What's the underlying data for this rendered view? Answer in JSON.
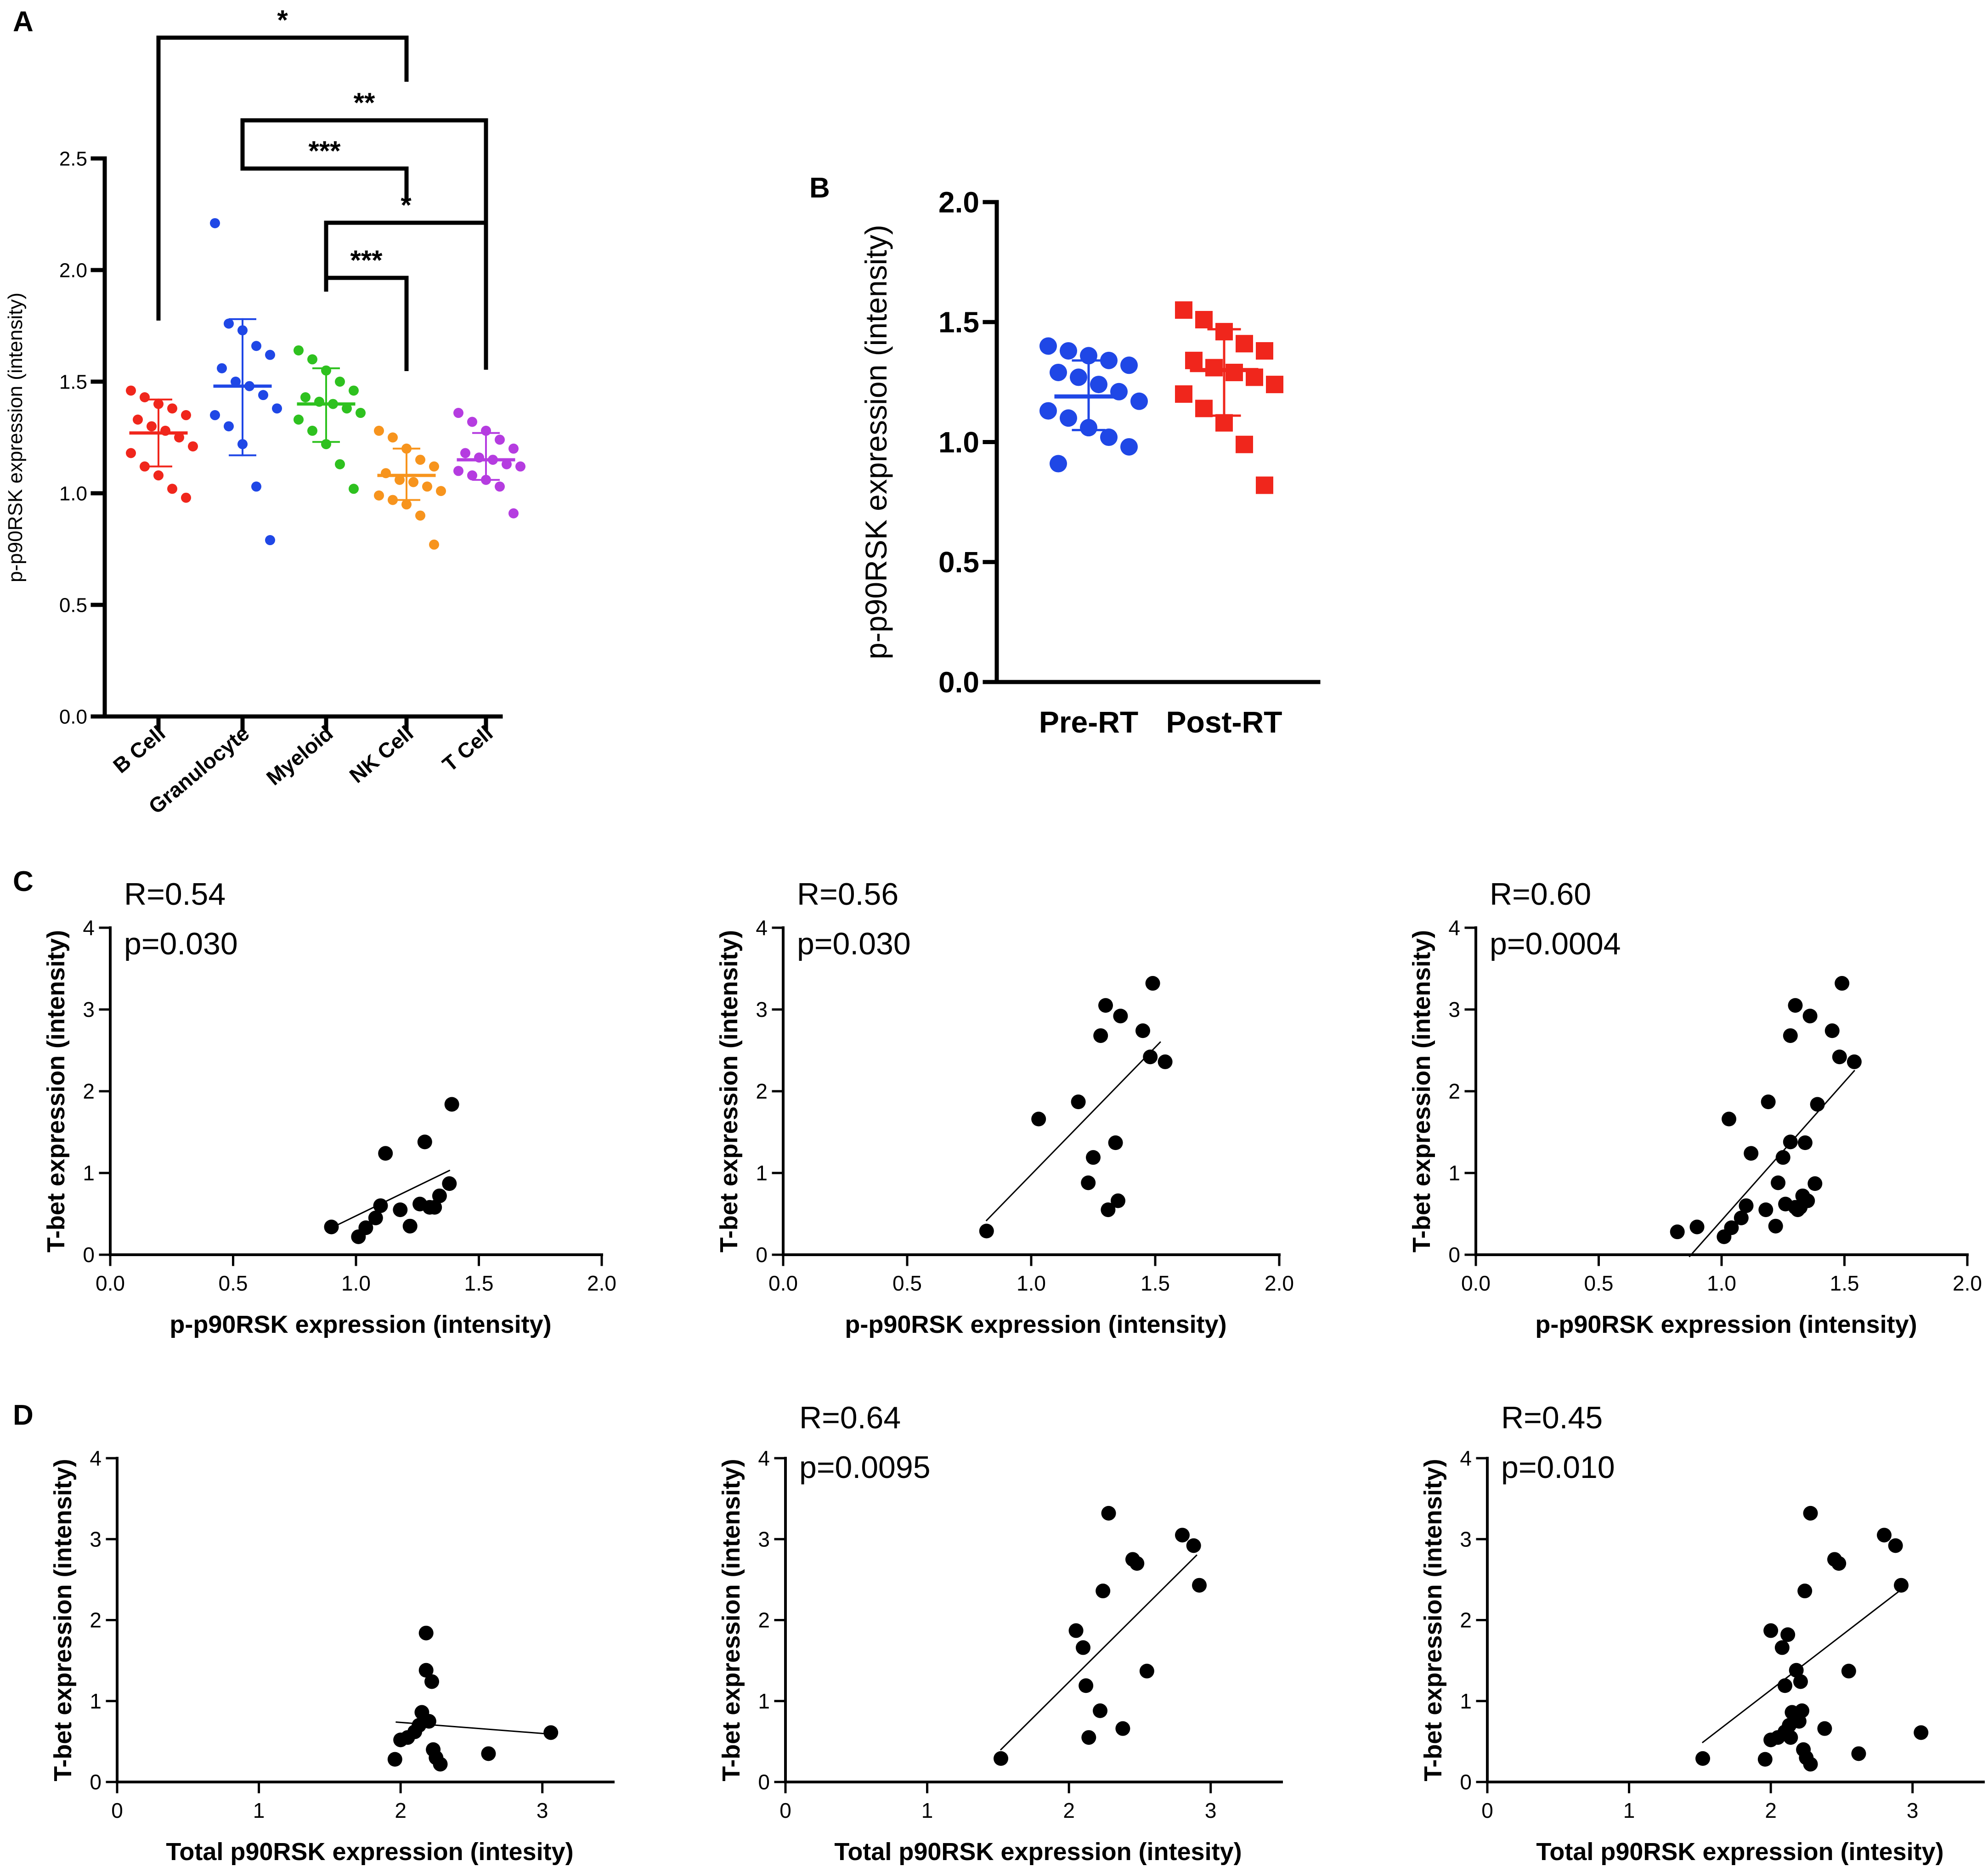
{
  "figure": {
    "colors": {
      "ink": "#000000",
      "b_cell": "#f0261c",
      "granulocyte": "#1f47e6",
      "myeloid": "#2ec11f",
      "nk_cell": "#f7941d",
      "t_cell": "#b53ce0",
      "pre_rt": "#1f47e6",
      "post_rt": "#f0261c"
    }
  },
  "chart_data": [
    {
      "panel": "A",
      "type": "scatter",
      "title": "",
      "xlabel": "",
      "ylabel": "p-p90RSK expression (intensity)",
      "categories": [
        "B Cell",
        "Granulocyte",
        "Myeloid",
        "NK Cell",
        "T Cell"
      ],
      "ylim": [
        0,
        2.5
      ],
      "yticks": [
        "0.0",
        "0.5",
        "1.0",
        "1.5",
        "2.0",
        "2.5"
      ],
      "series": [
        {
          "name": "B Cell",
          "color_key": "b_cell",
          "mean": 1.27,
          "sd_low": 1.12,
          "sd_high": 1.42,
          "values": [
            1.46,
            1.43,
            1.4,
            1.38,
            1.35,
            1.33,
            1.3,
            1.28,
            1.25,
            1.21,
            1.18,
            1.12,
            1.08,
            1.02,
            0.98
          ]
        },
        {
          "name": "Granulocyte",
          "color_key": "granulocyte",
          "mean": 1.48,
          "sd_low": 1.17,
          "sd_high": 1.78,
          "values": [
            2.21,
            1.76,
            1.73,
            1.66,
            1.62,
            1.56,
            1.5,
            1.48,
            1.44,
            1.38,
            1.35,
            1.3,
            1.22,
            1.03,
            0.79
          ]
        },
        {
          "name": "Myeloid",
          "color_key": "myeloid",
          "mean": 1.4,
          "sd_low": 1.23,
          "sd_high": 1.56,
          "values": [
            1.64,
            1.6,
            1.55,
            1.5,
            1.46,
            1.43,
            1.41,
            1.4,
            1.38,
            1.36,
            1.33,
            1.28,
            1.22,
            1.13,
            1.02
          ]
        },
        {
          "name": "NK Cell",
          "color_key": "nk_cell",
          "mean": 1.08,
          "sd_low": 0.97,
          "sd_high": 1.2,
          "values": [
            1.28,
            1.25,
            1.2,
            1.15,
            1.12,
            1.09,
            1.06,
            1.05,
            1.03,
            1.01,
            0.99,
            0.97,
            0.95,
            0.9,
            0.77
          ]
        },
        {
          "name": "T Cell",
          "color_key": "t_cell",
          "mean": 1.15,
          "sd_low": 1.06,
          "sd_high": 1.27,
          "values": [
            1.36,
            1.32,
            1.28,
            1.24,
            1.2,
            1.18,
            1.16,
            1.15,
            1.13,
            1.12,
            1.1,
            1.08,
            1.06,
            1.03,
            0.91
          ]
        }
      ],
      "significance": [
        {
          "from": "B Cell",
          "to": "NK Cell",
          "label": "*"
        },
        {
          "from": "Granulocyte",
          "to": "T Cell",
          "label": "**"
        },
        {
          "from": "Granulocyte",
          "to": "NK Cell",
          "label": "***"
        },
        {
          "from": "Myeloid",
          "to": "T Cell",
          "label": "*"
        },
        {
          "from": "Myeloid",
          "to": "NK Cell",
          "label": "***"
        }
      ]
    },
    {
      "panel": "B",
      "type": "scatter",
      "title": "",
      "xlabel": "",
      "ylabel": "p-p90RSK expression (intensity)",
      "categories": [
        "Pre-RT",
        "Post-RT"
      ],
      "ylim": [
        0,
        2.0
      ],
      "yticks": [
        "0.0",
        "0.5",
        "1.0",
        "1.5",
        "2.0"
      ],
      "series": [
        {
          "name": "Pre-RT",
          "color_key": "pre_rt",
          "marker": "circle",
          "mean": 1.19,
          "sd_low": 1.05,
          "sd_high": 1.34,
          "values": [
            1.4,
            1.38,
            1.36,
            1.34,
            1.32,
            1.29,
            1.27,
            1.24,
            1.21,
            1.17,
            1.13,
            1.1,
            1.06,
            1.02,
            0.98,
            0.91
          ]
        },
        {
          "name": "Post-RT",
          "color_key": "post_rt",
          "marker": "square",
          "mean": 1.3,
          "sd_low": 1.11,
          "sd_high": 1.47,
          "values": [
            1.55,
            1.51,
            1.46,
            1.41,
            1.38,
            1.34,
            1.31,
            1.29,
            1.27,
            1.24,
            1.2,
            1.14,
            1.08,
            0.99,
            0.82
          ]
        }
      ]
    },
    {
      "panel": "C1",
      "type": "scatter",
      "xlabel": "p-p90RSK expression (intensity)",
      "ylabel": "T-bet expression (intensity)",
      "xlim": [
        0,
        2.0
      ],
      "ylim": [
        0,
        4
      ],
      "xticks": [
        "0.0",
        "0.5",
        "1.0",
        "1.5",
        "2.0"
      ],
      "yticks": [
        "0",
        "1",
        "2",
        "3",
        "4"
      ],
      "stat_r": "R=0.54",
      "stat_p": "p=0.030",
      "points": [
        [
          0.9,
          0.34
        ],
        [
          1.01,
          0.22
        ],
        [
          1.04,
          0.33
        ],
        [
          1.08,
          0.45
        ],
        [
          1.1,
          0.6
        ],
        [
          1.12,
          1.24
        ],
        [
          1.18,
          0.55
        ],
        [
          1.22,
          0.35
        ],
        [
          1.26,
          0.62
        ],
        [
          1.28,
          1.38
        ],
        [
          1.3,
          0.58
        ],
        [
          1.32,
          0.58
        ],
        [
          1.34,
          0.72
        ],
        [
          1.38,
          0.87
        ],
        [
          1.39,
          1.84
        ]
      ],
      "fit": [
        [
          0.88,
          0.3
        ],
        [
          1.38,
          1.03
        ]
      ]
    },
    {
      "panel": "C2",
      "type": "scatter",
      "xlabel": "p-p90RSK expression (intensity)",
      "ylabel": "T-bet expression (intensity)",
      "xlim": [
        0,
        2.0
      ],
      "ylim": [
        0,
        4
      ],
      "xticks": [
        "0.0",
        "0.5",
        "1.0",
        "1.5",
        "2.0"
      ],
      "yticks": [
        "0",
        "1",
        "2",
        "3",
        "4"
      ],
      "stat_r": "R=0.56",
      "stat_p": "p=0.030",
      "points": [
        [
          0.82,
          0.29
        ],
        [
          1.03,
          1.66
        ],
        [
          1.19,
          1.87
        ],
        [
          1.23,
          0.88
        ],
        [
          1.25,
          1.19
        ],
        [
          1.28,
          2.68
        ],
        [
          1.3,
          3.05
        ],
        [
          1.31,
          0.55
        ],
        [
          1.34,
          1.37
        ],
        [
          1.35,
          0.66
        ],
        [
          1.36,
          2.92
        ],
        [
          1.45,
          2.74
        ],
        [
          1.48,
          2.42
        ],
        [
          1.49,
          3.32
        ],
        [
          1.54,
          2.36
        ]
      ],
      "fit": [
        [
          0.82,
          0.42
        ],
        [
          1.52,
          2.6
        ]
      ]
    },
    {
      "panel": "C3",
      "type": "scatter",
      "xlabel": "p-p90RSK expression (intensity)",
      "ylabel": "T-bet expression (intensity)",
      "xlim": [
        0,
        2.0
      ],
      "ylim": [
        0,
        4
      ],
      "xticks": [
        "0.0",
        "0.5",
        "1.0",
        "1.5",
        "2.0"
      ],
      "yticks": [
        "0",
        "1",
        "2",
        "3",
        "4"
      ],
      "stat_r": "R=0.60",
      "stat_p": "p=0.0004",
      "points": [
        [
          0.82,
          0.28
        ],
        [
          0.9,
          0.34
        ],
        [
          1.01,
          0.22
        ],
        [
          1.03,
          1.66
        ],
        [
          1.04,
          0.33
        ],
        [
          1.08,
          0.45
        ],
        [
          1.1,
          0.6
        ],
        [
          1.12,
          1.24
        ],
        [
          1.18,
          0.55
        ],
        [
          1.19,
          1.87
        ],
        [
          1.22,
          0.35
        ],
        [
          1.23,
          0.88
        ],
        [
          1.25,
          1.19
        ],
        [
          1.26,
          0.62
        ],
        [
          1.28,
          2.68
        ],
        [
          1.28,
          1.38
        ],
        [
          1.3,
          3.05
        ],
        [
          1.3,
          0.58
        ],
        [
          1.31,
          0.55
        ],
        [
          1.32,
          0.58
        ],
        [
          1.33,
          0.72
        ],
        [
          1.34,
          1.37
        ],
        [
          1.35,
          0.66
        ],
        [
          1.36,
          2.92
        ],
        [
          1.38,
          0.87
        ],
        [
          1.39,
          1.84
        ],
        [
          1.45,
          2.74
        ],
        [
          1.48,
          2.42
        ],
        [
          1.49,
          3.32
        ],
        [
          1.54,
          2.36
        ]
      ],
      "fit": [
        [
          0.87,
          -0.02
        ],
        [
          1.54,
          2.25
        ]
      ]
    },
    {
      "panel": "D1",
      "type": "scatter",
      "xlabel": "Total p90RSK expression (intesity)",
      "ylabel": "T-bet expression (intensity)",
      "xlim": [
        0,
        3.5
      ],
      "ylim": [
        0,
        4
      ],
      "xticks": [
        "0",
        "1",
        "2",
        "3"
      ],
      "yticks": [
        "0",
        "1",
        "2",
        "3",
        "4"
      ],
      "stat_r": "",
      "stat_p": "",
      "points": [
        [
          1.96,
          0.28
        ],
        [
          2.0,
          0.52
        ],
        [
          2.05,
          0.55
        ],
        [
          2.1,
          0.62
        ],
        [
          2.13,
          0.7
        ],
        [
          2.15,
          0.86
        ],
        [
          2.18,
          1.38
        ],
        [
          2.18,
          1.84
        ],
        [
          2.2,
          0.75
        ],
        [
          2.22,
          1.24
        ],
        [
          2.23,
          0.4
        ],
        [
          2.25,
          0.3
        ],
        [
          2.28,
          0.22
        ],
        [
          2.62,
          0.35
        ],
        [
          3.06,
          0.61
        ]
      ],
      "fit": [
        [
          1.97,
          0.74
        ],
        [
          3.07,
          0.59
        ]
      ]
    },
    {
      "panel": "D2",
      "type": "scatter",
      "xlabel": "Total p90RSK expression (intesity)",
      "ylabel": "T-bet expression (intensity)",
      "xlim": [
        0,
        3.5
      ],
      "ylim": [
        0,
        4
      ],
      "xticks": [
        "0",
        "1",
        "2",
        "3"
      ],
      "yticks": [
        "0",
        "1",
        "2",
        "3",
        "4"
      ],
      "stat_r": "R=0.64",
      "stat_p": "p=0.0095",
      "points": [
        [
          1.52,
          0.29
        ],
        [
          2.05,
          1.87
        ],
        [
          2.1,
          1.66
        ],
        [
          2.12,
          1.19
        ],
        [
          2.14,
          0.55
        ],
        [
          2.22,
          0.88
        ],
        [
          2.24,
          2.36
        ],
        [
          2.28,
          3.32
        ],
        [
          2.38,
          0.66
        ],
        [
          2.45,
          2.75
        ],
        [
          2.48,
          2.7
        ],
        [
          2.55,
          1.37
        ],
        [
          2.8,
          3.05
        ],
        [
          2.88,
          2.92
        ],
        [
          2.92,
          2.43
        ]
      ],
      "fit": [
        [
          1.52,
          0.4
        ],
        [
          2.9,
          2.8
        ]
      ]
    },
    {
      "panel": "D3",
      "type": "scatter",
      "xlabel": "Total p90RSK expression (intesity)",
      "ylabel": "T-bet expression (intensity)",
      "xlim": [
        0,
        3.5
      ],
      "ylim": [
        0,
        4
      ],
      "xticks": [
        "0",
        "1",
        "2",
        "3"
      ],
      "yticks": [
        "0",
        "1",
        "2",
        "3",
        "4"
      ],
      "stat_r": "R=0.45",
      "stat_p": "p=0.010",
      "points": [
        [
          1.52,
          0.29
        ],
        [
          1.96,
          0.28
        ],
        [
          2.0,
          0.52
        ],
        [
          2.0,
          1.87
        ],
        [
          2.05,
          0.55
        ],
        [
          2.08,
          1.66
        ],
        [
          2.1,
          0.62
        ],
        [
          2.1,
          1.19
        ],
        [
          2.12,
          1.82
        ],
        [
          2.13,
          0.7
        ],
        [
          2.14,
          0.55
        ],
        [
          2.15,
          0.86
        ],
        [
          2.18,
          1.38
        ],
        [
          2.2,
          0.75
        ],
        [
          2.21,
          1.24
        ],
        [
          2.22,
          0.88
        ],
        [
          2.23,
          0.4
        ],
        [
          2.24,
          2.36
        ],
        [
          2.25,
          0.3
        ],
        [
          2.28,
          0.22
        ],
        [
          2.28,
          3.32
        ],
        [
          2.38,
          0.66
        ],
        [
          2.45,
          2.75
        ],
        [
          2.48,
          2.7
        ],
        [
          2.55,
          1.37
        ],
        [
          2.62,
          0.35
        ],
        [
          2.8,
          3.05
        ],
        [
          2.88,
          2.92
        ],
        [
          2.92,
          2.43
        ],
        [
          3.06,
          0.61
        ]
      ],
      "fit": [
        [
          1.52,
          0.49
        ],
        [
          2.9,
          2.35
        ]
      ]
    }
  ],
  "panel_labels": [
    "A",
    "B",
    "C",
    "D"
  ]
}
